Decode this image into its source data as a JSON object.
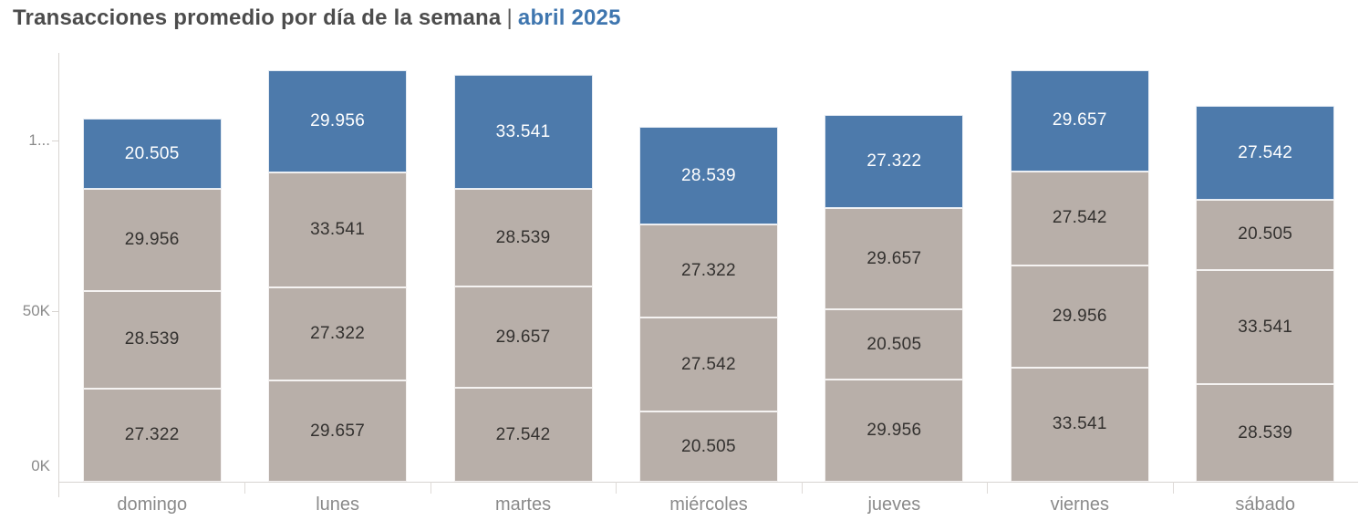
{
  "title": {
    "main": "Transacciones promedio por día de la semana",
    "separator": "|",
    "period": "abril 2025"
  },
  "colors": {
    "highlight": "#4d7aab",
    "base": "#b8afa9",
    "title_period": "#3f76af",
    "label_on_base": "#33312f",
    "label_on_highlight": "#ffffff",
    "axis_line": "#d8d4d1",
    "axis_text": "#8b8b8b"
  },
  "y_axis": {
    "ticks": [
      {
        "label": "0K",
        "value": 0
      },
      {
        "label": "50K",
        "value": 50000
      },
      {
        "label": "1...",
        "value": 100000
      }
    ]
  },
  "chart_data": {
    "type": "bar",
    "stacked": true,
    "title": "Transacciones promedio por día de la semana | abril 2025",
    "xlabel": "",
    "ylabel": "",
    "ylim": [
      0,
      125000
    ],
    "grid": false,
    "legend": false,
    "y_tick_labels": [
      "0K",
      "50K",
      "1..."
    ],
    "categories": [
      "domingo",
      "lunes",
      "martes",
      "miércoles",
      "jueves",
      "viernes",
      "sábado"
    ],
    "segment_order": "bottom-to-top; the top segment of each bar is the blue highlighted series",
    "bars": [
      {
        "category": "domingo",
        "segments": [
          {
            "label": "27.322",
            "value": 27322,
            "series": "base"
          },
          {
            "label": "28.539",
            "value": 28539,
            "series": "base"
          },
          {
            "label": "29.956",
            "value": 29956,
            "series": "base"
          },
          {
            "label": "20.505",
            "value": 20505,
            "series": "highlight"
          }
        ]
      },
      {
        "category": "lunes",
        "segments": [
          {
            "label": "29.657",
            "value": 29657,
            "series": "base"
          },
          {
            "label": "27.322",
            "value": 27322,
            "series": "base"
          },
          {
            "label": "33.541",
            "value": 33541,
            "series": "base"
          },
          {
            "label": "29.956",
            "value": 29956,
            "series": "highlight"
          }
        ]
      },
      {
        "category": "martes",
        "segments": [
          {
            "label": "27.542",
            "value": 27542,
            "series": "base"
          },
          {
            "label": "29.657",
            "value": 29657,
            "series": "base"
          },
          {
            "label": "28.539",
            "value": 28539,
            "series": "base"
          },
          {
            "label": "33.541",
            "value": 33541,
            "series": "highlight"
          }
        ]
      },
      {
        "category": "miércoles",
        "segments": [
          {
            "label": "20.505",
            "value": 20505,
            "series": "base"
          },
          {
            "label": "27.542",
            "value": 27542,
            "series": "base"
          },
          {
            "label": "27.322",
            "value": 27322,
            "series": "base"
          },
          {
            "label": "28.539",
            "value": 28539,
            "series": "highlight"
          }
        ]
      },
      {
        "category": "jueves",
        "segments": [
          {
            "label": "29.956",
            "value": 29956,
            "series": "base"
          },
          {
            "label": "20.505",
            "value": 20505,
            "series": "base"
          },
          {
            "label": "29.657",
            "value": 29657,
            "series": "base"
          },
          {
            "label": "27.322",
            "value": 27322,
            "series": "highlight"
          }
        ]
      },
      {
        "category": "viernes",
        "segments": [
          {
            "label": "33.541",
            "value": 33541,
            "series": "base"
          },
          {
            "label": "29.956",
            "value": 29956,
            "series": "base"
          },
          {
            "label": "27.542",
            "value": 27542,
            "series": "base"
          },
          {
            "label": "29.657",
            "value": 29657,
            "series": "highlight"
          }
        ]
      },
      {
        "category": "sábado",
        "segments": [
          {
            "label": "28.539",
            "value": 28539,
            "series": "base"
          },
          {
            "label": "33.541",
            "value": 33541,
            "series": "base"
          },
          {
            "label": "20.505",
            "value": 20505,
            "series": "base"
          },
          {
            "label": "27.542",
            "value": 27542,
            "series": "highlight"
          }
        ]
      }
    ]
  }
}
